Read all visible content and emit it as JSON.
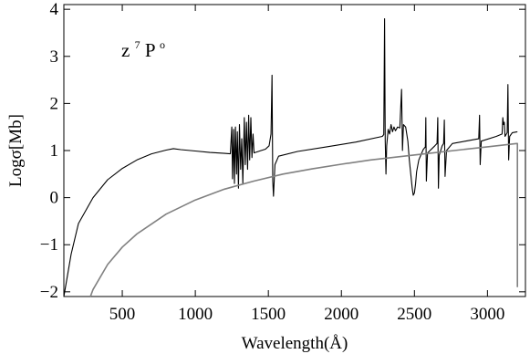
{
  "chart_data": {
    "type": "line",
    "title": "",
    "xlabel": "Wavelength(Å)",
    "ylabel": "Logσ[Mb]",
    "annotation": {
      "main": "z",
      "sup_left": "7",
      "letter": "P",
      "sup_right": "o"
    },
    "xlim": [
      100,
      3260
    ],
    "ylim": [
      -2.1,
      4.1
    ],
    "xticks": [
      500,
      1000,
      1500,
      2000,
      2500,
      3000
    ],
    "xtick_labels": [
      "500",
      "1000",
      "1500",
      "2000",
      "2500",
      "3000"
    ],
    "yticks": [
      -2,
      -1,
      0,
      1,
      2,
      3,
      4
    ],
    "ytick_labels": [
      "−2",
      "−1",
      "0",
      "1",
      "2",
      "3",
      "4"
    ],
    "grid": false,
    "series": [
      {
        "color": "#000000",
        "style": "resonance",
        "points": [
          [
            100,
            -2.1
          ],
          [
            150,
            -1.2
          ],
          [
            200,
            -0.55
          ],
          [
            300,
            0.0
          ],
          [
            400,
            0.38
          ],
          [
            500,
            0.62
          ],
          [
            600,
            0.8
          ],
          [
            700,
            0.93
          ],
          [
            800,
            1.01
          ],
          [
            850,
            1.04
          ],
          [
            900,
            1.02
          ],
          [
            1000,
            0.99
          ],
          [
            1100,
            0.96
          ],
          [
            1200,
            0.94
          ],
          [
            1240,
            0.93
          ],
          [
            1250,
            1.5
          ],
          [
            1255,
            0.4
          ],
          [
            1262,
            1.45
          ],
          [
            1268,
            0.3
          ],
          [
            1275,
            1.5
          ],
          [
            1282,
            0.5
          ],
          [
            1288,
            1.4
          ],
          [
            1295,
            0.2
          ],
          [
            1302,
            1.55
          ],
          [
            1310,
            0.6
          ],
          [
            1318,
            1.25
          ],
          [
            1325,
            0.3
          ],
          [
            1335,
            1.7
          ],
          [
            1342,
            0.7
          ],
          [
            1350,
            1.6
          ],
          [
            1358,
            0.6
          ],
          [
            1365,
            1.75
          ],
          [
            1372,
            0.8
          ],
          [
            1380,
            1.7
          ],
          [
            1388,
            0.85
          ],
          [
            1395,
            1.35
          ],
          [
            1402,
            0.95
          ],
          [
            1410,
            0.96
          ],
          [
            1450,
            1.0
          ],
          [
            1480,
            1.03
          ],
          [
            1505,
            1.1
          ],
          [
            1518,
            1.35
          ],
          [
            1525,
            2.6
          ],
          [
            1530,
            0.35
          ],
          [
            1535,
            0.03
          ],
          [
            1545,
            0.7
          ],
          [
            1570,
            0.88
          ],
          [
            1700,
            0.98
          ],
          [
            1900,
            1.08
          ],
          [
            2100,
            1.18
          ],
          [
            2280,
            1.3
          ],
          [
            2290,
            1.34
          ],
          [
            2296,
            3.8
          ],
          [
            2300,
            1.2
          ],
          [
            2305,
            0.5
          ],
          [
            2310,
            1.1
          ],
          [
            2320,
            1.45
          ],
          [
            2330,
            1.35
          ],
          [
            2340,
            1.55
          ],
          [
            2350,
            1.4
          ],
          [
            2360,
            1.5
          ],
          [
            2370,
            1.42
          ],
          [
            2385,
            1.5
          ],
          [
            2400,
            1.48
          ],
          [
            2412,
            2.3
          ],
          [
            2418,
            1.0
          ],
          [
            2425,
            1.55
          ],
          [
            2440,
            1.5
          ],
          [
            2455,
            1.2
          ],
          [
            2465,
            0.8
          ],
          [
            2475,
            0.5
          ],
          [
            2485,
            0.2
          ],
          [
            2492,
            0.05
          ],
          [
            2500,
            0.1
          ],
          [
            2508,
            0.3
          ],
          [
            2515,
            0.55
          ],
          [
            2530,
            0.8
          ],
          [
            2560,
            1.02
          ],
          [
            2575,
            1.08
          ],
          [
            2578,
            1.7
          ],
          [
            2582,
            0.35
          ],
          [
            2590,
            0.95
          ],
          [
            2640,
            1.1
          ],
          [
            2655,
            1.15
          ],
          [
            2660,
            1.7
          ],
          [
            2664,
            0.2
          ],
          [
            2670,
            0.9
          ],
          [
            2690,
            1.1
          ],
          [
            2700,
            1.15
          ],
          [
            2705,
            1.65
          ],
          [
            2710,
            0.45
          ],
          [
            2720,
            1.0
          ],
          [
            2760,
            1.15
          ],
          [
            2850,
            1.2
          ],
          [
            2940,
            1.25
          ],
          [
            2946,
            1.75
          ],
          [
            2950,
            0.7
          ],
          [
            2958,
            1.2
          ],
          [
            3060,
            1.3
          ],
          [
            3100,
            1.35
          ],
          [
            3105,
            1.7
          ],
          [
            3110,
            1.55
          ],
          [
            3115,
            1.6
          ],
          [
            3120,
            1.3
          ],
          [
            3135,
            1.38
          ],
          [
            3140,
            2.4
          ],
          [
            3145,
            0.8
          ],
          [
            3152,
            1.3
          ],
          [
            3170,
            1.38
          ],
          [
            3205,
            1.4
          ]
        ]
      },
      {
        "color": "#808080",
        "style": "smooth",
        "points": [
          [
            282,
            -2.1
          ],
          [
            300,
            -1.95
          ],
          [
            400,
            -1.42
          ],
          [
            500,
            -1.05
          ],
          [
            600,
            -0.77
          ],
          [
            800,
            -0.35
          ],
          [
            1000,
            -0.05
          ],
          [
            1200,
            0.18
          ],
          [
            1400,
            0.35
          ],
          [
            1600,
            0.5
          ],
          [
            1800,
            0.61
          ],
          [
            2000,
            0.71
          ],
          [
            2200,
            0.8
          ],
          [
            2400,
            0.87
          ],
          [
            2600,
            0.94
          ],
          [
            2800,
            1.01
          ],
          [
            3000,
            1.08
          ],
          [
            3200,
            1.15
          ],
          [
            3205,
            1.15
          ],
          [
            3205,
            -1.9
          ]
        ]
      }
    ]
  }
}
